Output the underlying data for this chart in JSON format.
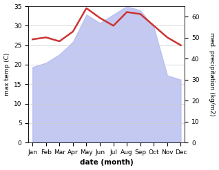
{
  "months": [
    "Jan",
    "Feb",
    "Mar",
    "Apr",
    "May",
    "Jun",
    "Jul",
    "Aug",
    "Sep",
    "Oct",
    "Nov",
    "Dec"
  ],
  "temperature": [
    26.5,
    27.0,
    26.0,
    28.5,
    34.5,
    32.0,
    30.0,
    33.5,
    33.0,
    30.0,
    27.0,
    25.0
  ],
  "precipitation": [
    36,
    38,
    42,
    48,
    61,
    57,
    61,
    65,
    63,
    55,
    32,
    30
  ],
  "temp_color": "#cc3333",
  "precip_color": "#b0b8ee",
  "temp_ylim": [
    0,
    35
  ],
  "precip_ylim": [
    0,
    65
  ],
  "temp_yticks": [
    0,
    5,
    10,
    15,
    20,
    25,
    30,
    35
  ],
  "precip_yticks": [
    0,
    10,
    20,
    30,
    40,
    50,
    60
  ],
  "ylabel_left": "max temp (C)",
  "ylabel_right": "med. precipitation (kg/m2)",
  "xlabel": "date (month)",
  "bg_color": "#ffffff",
  "line_width": 1.8
}
